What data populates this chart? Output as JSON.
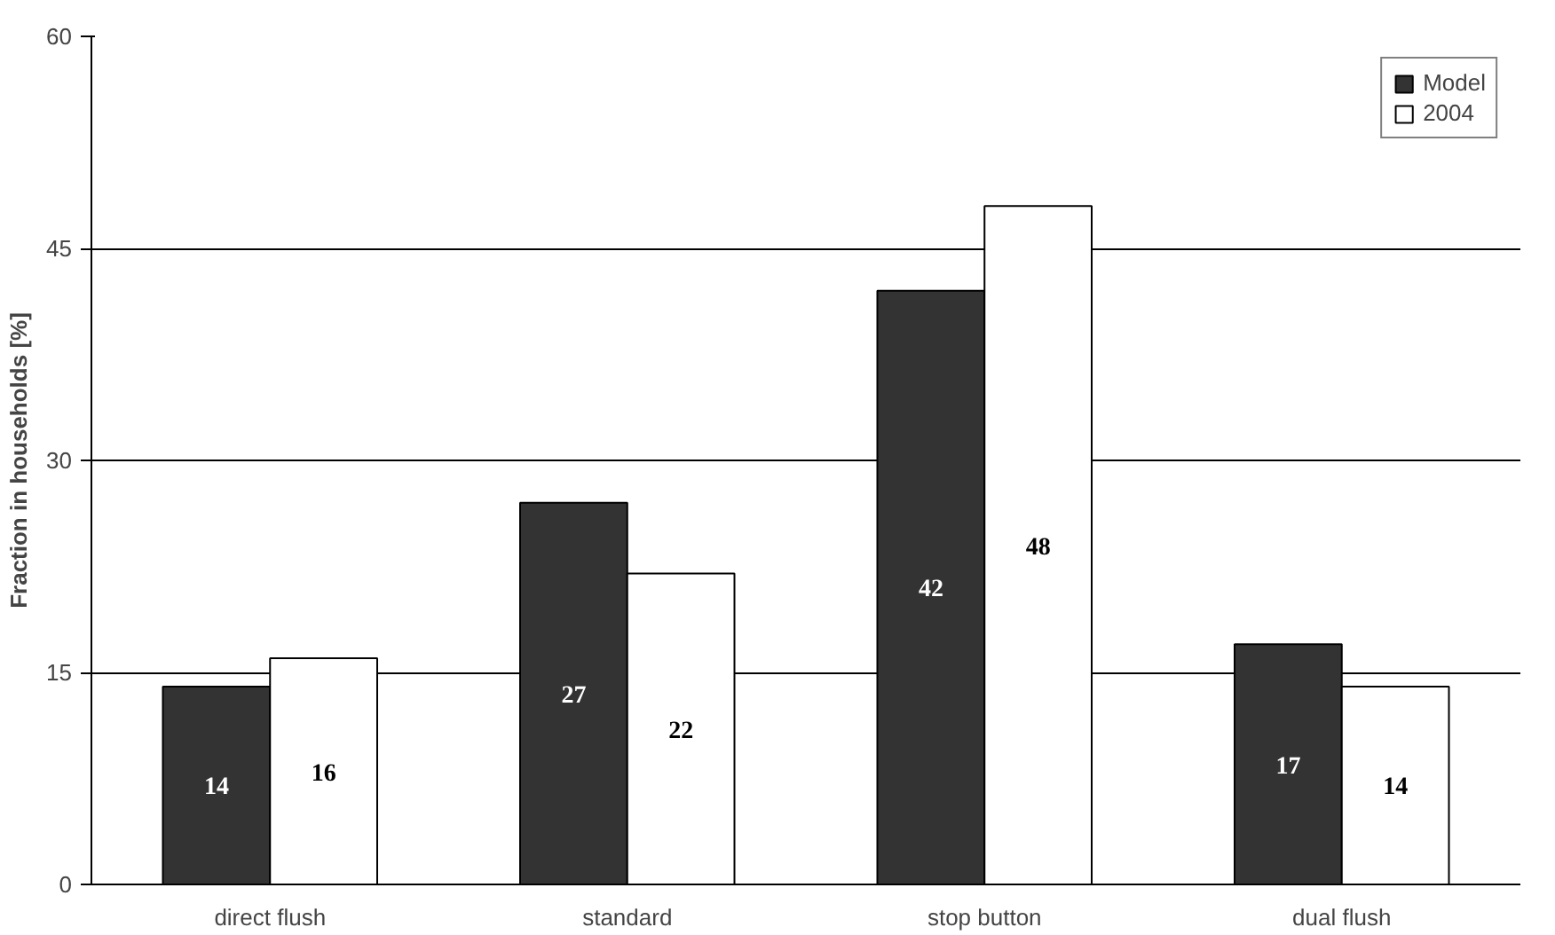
{
  "chart_data": {
    "type": "bar",
    "ylabel": "Fraction in households [%]",
    "categories": [
      "direct flush",
      "standard",
      "stop button",
      "dual flush"
    ],
    "series": [
      {
        "name": "Model",
        "color": "#333333",
        "values": [
          14,
          27,
          42,
          17
        ]
      },
      {
        "name": "2004",
        "color": "#ffffff",
        "values": [
          16,
          22,
          48,
          14
        ]
      }
    ],
    "ylim": [
      0,
      60
    ],
    "yticks": [
      0,
      15,
      30,
      45,
      60
    ],
    "grid": "y",
    "legend": "top right",
    "data_labels": true
  }
}
